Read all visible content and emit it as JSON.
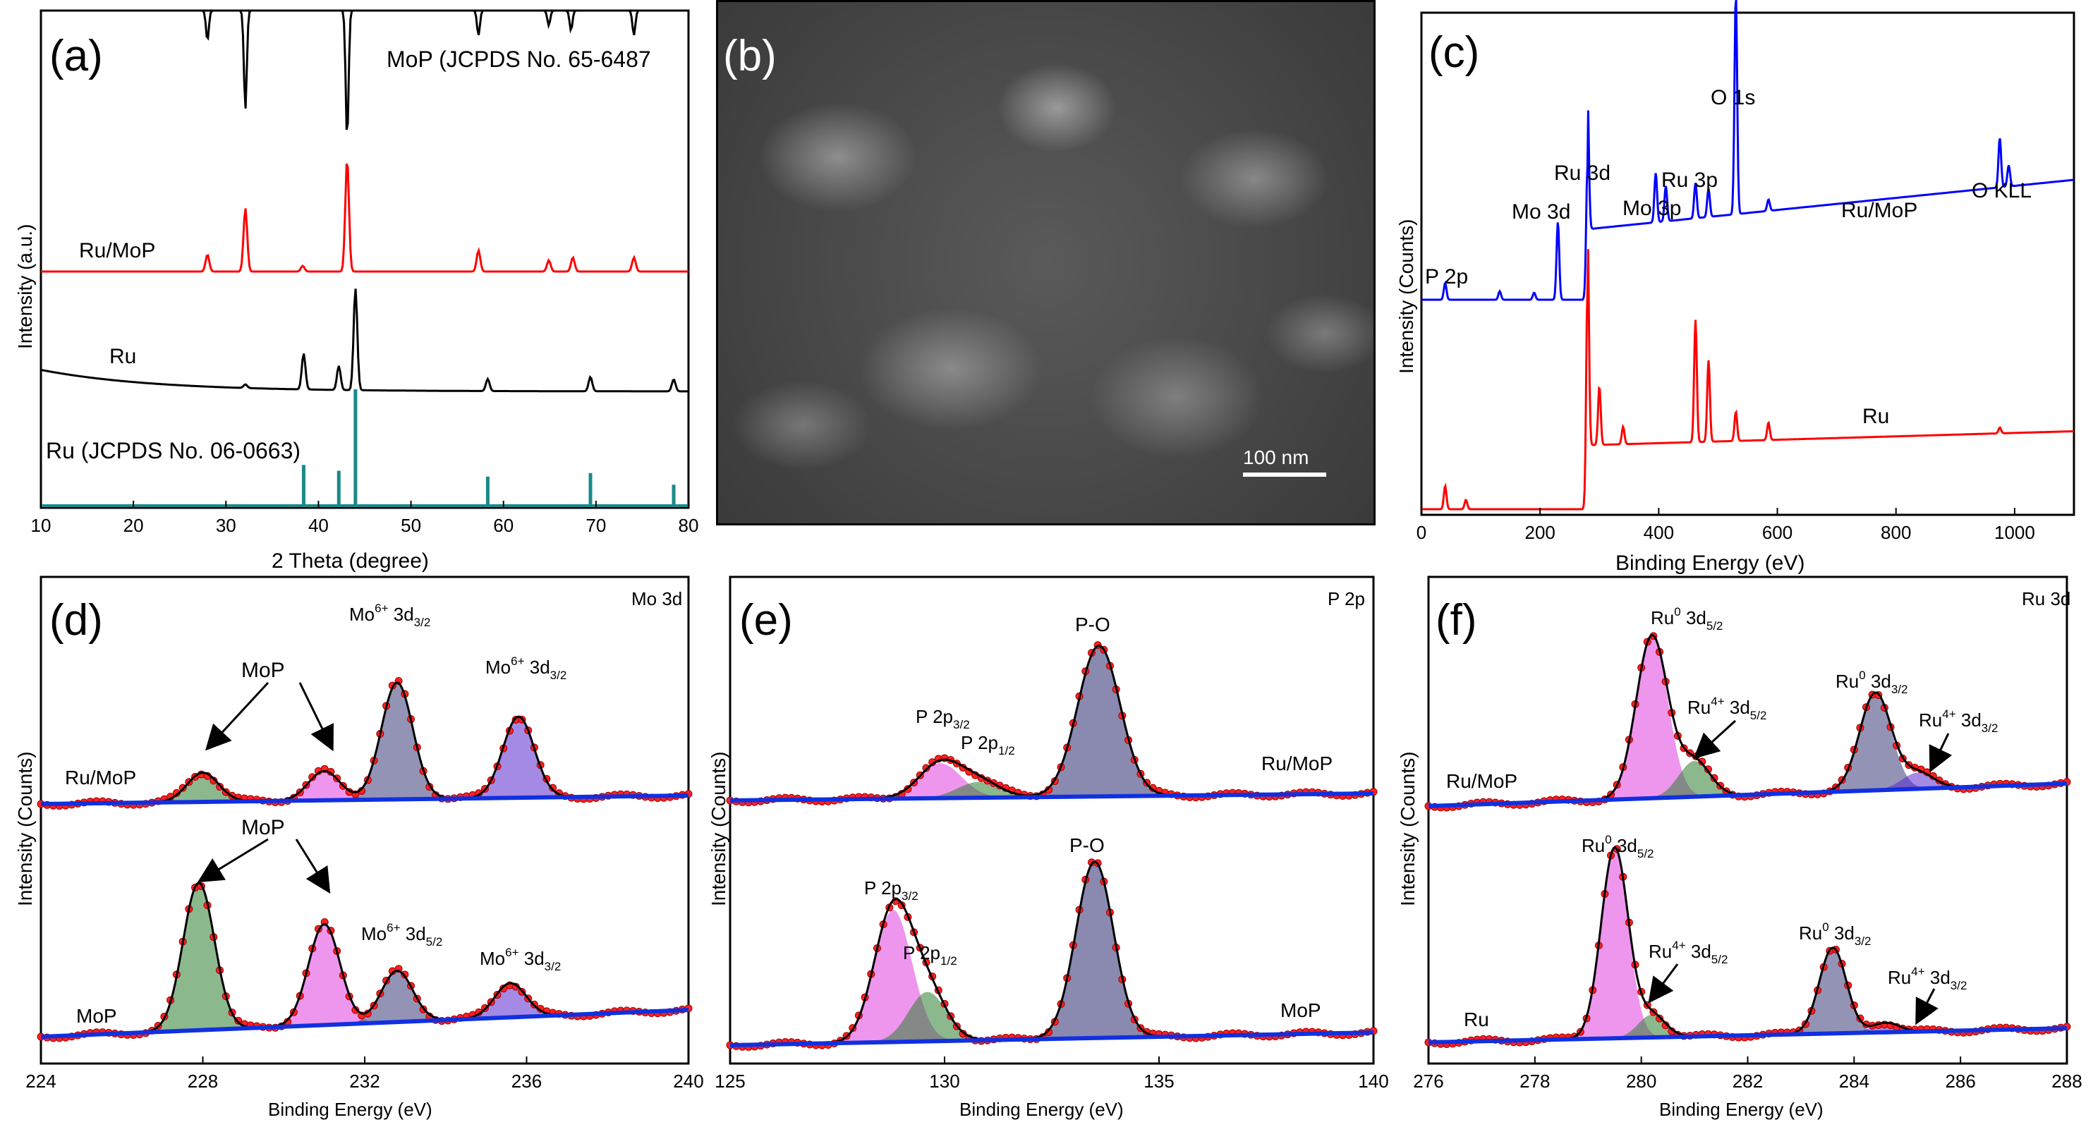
{
  "chart_data": [
    {
      "panel": "a",
      "type": "line",
      "xlabel": "2 Theta (degree)",
      "ylabel": "Intensity (a.u.)",
      "xlim": [
        10,
        80
      ],
      "xticks": [
        10,
        20,
        30,
        40,
        50,
        60,
        70,
        80
      ],
      "series": [
        {
          "name": "MoP (JCPDS No. 65-6487",
          "style": "inverted-reference",
          "color": "#000000",
          "peaks": [
            [
              28.0,
              0.3
            ],
            [
              32.1,
              1.0
            ],
            [
              43.1,
              1.3
            ],
            [
              57.3,
              0.25
            ],
            [
              64.9,
              0.15
            ],
            [
              67.3,
              0.2
            ],
            [
              74.1,
              0.25
            ]
          ]
        },
        {
          "name": "Ru/MoP",
          "color": "#ff0000",
          "peaks": [
            [
              28.0,
              0.12
            ],
            [
              32.1,
              0.45
            ],
            [
              38.3,
              0.04
            ],
            [
              43.1,
              0.8
            ],
            [
              57.3,
              0.15
            ],
            [
              64.9,
              0.08
            ],
            [
              67.5,
              0.1
            ],
            [
              74.1,
              0.1
            ]
          ]
        },
        {
          "name": "Ru",
          "color": "#000000",
          "peaks": [
            [
              32.1,
              0.03
            ],
            [
              38.4,
              0.3
            ],
            [
              42.2,
              0.2
            ],
            [
              44.0,
              0.85
            ],
            [
              58.3,
              0.1
            ],
            [
              69.4,
              0.12
            ],
            [
              78.4,
              0.1
            ]
          ]
        },
        {
          "name": "Ru (JCPDS No. 06-0663)",
          "style": "stick",
          "color": "#1a8a8a",
          "peaks": [
            [
              38.4,
              0.35
            ],
            [
              42.2,
              0.3
            ],
            [
              44.0,
              1.0
            ],
            [
              58.3,
              0.25
            ],
            [
              69.4,
              0.28
            ],
            [
              78.4,
              0.18
            ]
          ]
        }
      ],
      "annotations": [
        "(a)"
      ]
    },
    {
      "panel": "b",
      "type": "image",
      "annotations": [
        "(b)",
        "100 nm"
      ]
    },
    {
      "panel": "c",
      "type": "line",
      "xlabel": "Binding Energy (eV)",
      "ylabel": "Intensity (Counts)",
      "xlim": [
        0,
        1100
      ],
      "xticks": [
        0,
        200,
        400,
        600,
        800,
        1000
      ],
      "series": [
        {
          "name": "Ru/MoP",
          "color": "#0000ff",
          "peaks": [
            [
              40,
              0.12
            ],
            [
              132,
              0.06
            ],
            [
              190,
              0.05
            ],
            [
              230,
              0.55
            ],
            [
              280,
              0.95
            ],
            [
              395,
              0.35
            ],
            [
              412,
              0.25
            ],
            [
              462,
              0.25
            ],
            [
              484,
              0.2
            ],
            [
              530,
              1.55
            ],
            [
              585,
              0.08
            ],
            [
              975,
              0.35
            ],
            [
              990,
              0.15
            ]
          ]
        },
        {
          "name": "Ru",
          "color": "#ff0000",
          "peaks": [
            [
              40,
              0.2
            ],
            [
              75,
              0.08
            ],
            [
              280,
              1.9
            ],
            [
              300,
              0.5
            ],
            [
              340,
              0.15
            ],
            [
              462,
              1.05
            ],
            [
              484,
              0.7
            ],
            [
              530,
              0.25
            ],
            [
              585,
              0.15
            ],
            [
              975,
              0.05
            ]
          ]
        }
      ],
      "annotations": [
        "(c)",
        "P 2p",
        "Mo 3d",
        "Ru 3d",
        "Mo 3p",
        "Ru 3p",
        "O 1s",
        "O KLL"
      ]
    },
    {
      "panel": "d",
      "type": "line",
      "region": "Mo 3d",
      "xlabel": "Binding Energy (eV)",
      "ylabel": "Intensity (Counts)",
      "xlim": [
        224,
        240
      ],
      "xticks": [
        224,
        228,
        232,
        236,
        240
      ],
      "series": [
        {
          "name": "Ru/MoP",
          "components": [
            {
              "label": "MoP",
              "center": 228.0,
              "height": 0.18,
              "color": "#2e7d32"
            },
            {
              "label": "MoP",
              "center": 231.0,
              "height": 0.18,
              "color": "#e040e0"
            },
            {
              "label": "Mo6+ 3d3/2",
              "center": 232.8,
              "height": 0.72,
              "color": "#3a3a7a"
            },
            {
              "label": "Mo6+ 3d3/2",
              "center": 235.8,
              "height": 0.5,
              "color": "#5a2ad0"
            }
          ]
        },
        {
          "name": "MoP",
          "components": [
            {
              "label": "MoP",
              "center": 227.9,
              "height": 0.95,
              "color": "#2e7d32"
            },
            {
              "label": "MoP",
              "center": 231.0,
              "height": 0.65,
              "color": "#e040e0"
            },
            {
              "label": "Mo6+ 3d5/2",
              "center": 232.8,
              "height": 0.33,
              "color": "#3a3a7a"
            },
            {
              "label": "Mo6+ 3d3/2",
              "center": 235.6,
              "height": 0.22,
              "color": "#5a2ad0"
            }
          ]
        }
      ],
      "annotations": [
        "(d)",
        "Mo 3d",
        "MoP",
        "Mo",
        "6+",
        "3d",
        "3/2",
        "5/2",
        "Ru/MoP",
        "MoP"
      ]
    },
    {
      "panel": "e",
      "type": "line",
      "region": "P 2p",
      "xlabel": "Binding Energy (eV)",
      "ylabel": "Intensity (Counts)",
      "xlim": [
        125,
        140
      ],
      "xticks": [
        125,
        130,
        135,
        140
      ],
      "series": [
        {
          "name": "Ru/MoP",
          "components": [
            {
              "label": "P 2p3/2",
              "center": 129.9,
              "height": 0.22,
              "color": "#e040e0"
            },
            {
              "label": "P 2p1/2",
              "center": 130.8,
              "height": 0.1,
              "color": "#2e7d32"
            },
            {
              "label": "P-O",
              "center": 133.6,
              "height": 0.95,
              "color": "#2a2a70"
            }
          ]
        },
        {
          "name": "MoP",
          "components": [
            {
              "label": "P 2p3/2",
              "center": 128.8,
              "height": 0.75,
              "color": "#e040e0"
            },
            {
              "label": "P 2p1/2",
              "center": 129.6,
              "height": 0.28,
              "color": "#2e7d32"
            },
            {
              "label": "P-O",
              "center": 133.5,
              "height": 1.0,
              "color": "#2a2a70"
            }
          ]
        }
      ],
      "annotations": [
        "(e)",
        "P 2p",
        "P-O",
        "P 2p",
        "3/2",
        "1/2",
        "Ru/MoP",
        "MoP"
      ]
    },
    {
      "panel": "f",
      "type": "line",
      "region": "Ru 3d",
      "xlabel": "Binding Energy (eV)",
      "ylabel": "Intensity (Counts)",
      "xlim": [
        276,
        288
      ],
      "xticks": [
        276,
        278,
        280,
        282,
        284,
        286,
        288
      ],
      "series": [
        {
          "name": "Ru/MoP",
          "components": [
            {
              "label": "Ru0 3d5/2",
              "center": 280.2,
              "height": 1.0,
              "color": "#e040e0"
            },
            {
              "label": "Ru4+ 3d5/2",
              "center": 281.0,
              "height": 0.22,
              "color": "#2e7d32"
            },
            {
              "label": "Ru0 3d3/2",
              "center": 284.4,
              "height": 0.6,
              "color": "#3a3a7a"
            },
            {
              "label": "Ru4+ 3d3/2",
              "center": 285.2,
              "height": 0.1,
              "color": "#5a2ad0"
            }
          ]
        },
        {
          "name": "Ru",
          "components": [
            {
              "label": "Ru0 3d5/2",
              "center": 279.5,
              "height": 1.0,
              "color": "#e040e0"
            },
            {
              "label": "Ru4+ 3d5/2",
              "center": 280.2,
              "height": 0.12,
              "color": "#2e7d32"
            },
            {
              "label": "Ru0 3d3/2",
              "center": 283.6,
              "height": 0.45,
              "color": "#3a3a7a"
            },
            {
              "label": "Ru4+ 3d3/2",
              "center": 284.6,
              "height": 0.05,
              "color": "#5a2ad0"
            }
          ]
        }
      ],
      "annotations": [
        "(f)",
        "Ru 3d",
        "Ru",
        "0",
        "4+",
        "3d",
        "5/2",
        "3/2",
        "Ru/MoP",
        "Ru"
      ]
    }
  ]
}
